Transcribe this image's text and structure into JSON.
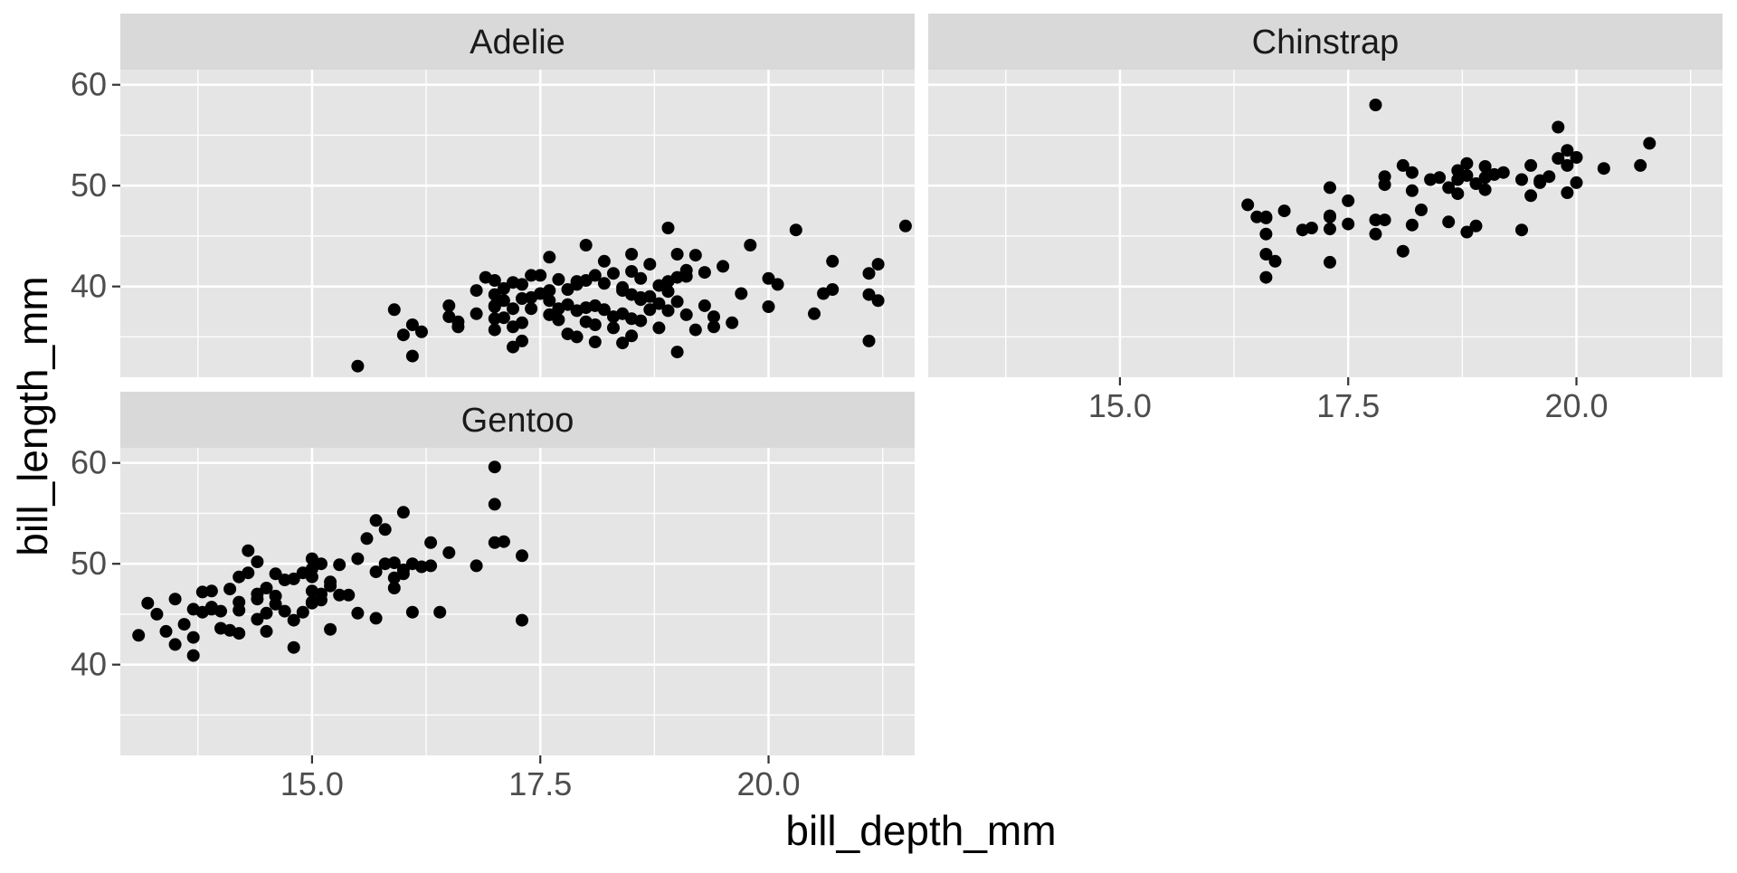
{
  "chart_data": {
    "type": "scatter",
    "xlabel": "bill_depth_mm",
    "ylabel": "bill_length_mm",
    "xlim": [
      12.9,
      21.6
    ],
    "ylim": [
      31.0,
      61.5
    ],
    "x_ticks": [
      15.0,
      17.5,
      20.0
    ],
    "x_tick_labels": [
      "15.0",
      "17.5",
      "20.0"
    ],
    "y_ticks": [
      40,
      50,
      60
    ],
    "y_tick_labels": [
      "40",
      "50",
      "60"
    ],
    "grid": true,
    "panels": [
      {
        "name": "Adelie",
        "x": [
          15.5,
          16.0,
          15.9,
          16.1,
          16.1,
          16.2,
          16.5,
          16.5,
          16.6,
          16.6,
          16.8,
          16.9,
          17.0,
          17.0,
          17.0,
          17.0,
          17.0,
          17.1,
          17.1,
          17.1,
          17.2,
          17.2,
          17.2,
          17.3,
          17.3,
          17.3,
          17.3,
          17.4,
          17.4,
          17.5,
          17.5,
          17.6,
          17.6,
          17.6,
          17.7,
          17.7,
          17.8,
          17.8,
          17.8,
          17.9,
          17.9,
          17.9,
          18.0,
          18.0,
          18.0,
          18.0,
          18.1,
          18.1,
          18.1,
          18.1,
          18.2,
          18.2,
          18.3,
          18.3,
          18.4,
          18.4,
          18.4,
          18.5,
          18.5,
          18.5,
          18.5,
          18.6,
          18.6,
          18.6,
          18.7,
          18.7,
          18.7,
          18.8,
          18.8,
          18.8,
          18.9,
          18.9,
          18.9,
          19.0,
          19.0,
          19.0,
          19.0,
          19.1,
          19.1,
          19.2,
          19.2,
          19.3,
          19.3,
          19.4,
          19.5,
          19.6,
          19.7,
          19.8,
          20.0,
          20.0,
          20.1,
          20.3,
          20.5,
          20.6,
          20.7,
          20.7,
          21.1,
          21.1,
          21.1,
          21.2,
          21.2,
          21.5,
          17.2,
          17.0,
          16.8,
          18.2,
          18.5,
          18.3,
          17.6,
          17.9,
          18.9,
          19.4,
          17.4,
          18.6,
          17.7,
          18.4,
          19.1
        ],
        "y": [
          32.1,
          35.2,
          37.7,
          33.1,
          36.2,
          35.5,
          38.1,
          37.0,
          36.0,
          36.5,
          37.3,
          40.9,
          35.7,
          36.8,
          38.1,
          39.2,
          40.6,
          39.8,
          38.6,
          36.9,
          40.4,
          37.8,
          34.0,
          40.2,
          38.8,
          36.4,
          34.6,
          38.9,
          41.1,
          39.3,
          41.1,
          42.9,
          38.6,
          39.6,
          37.8,
          36.7,
          39.7,
          38.2,
          35.3,
          40.2,
          37.6,
          35.0,
          40.6,
          44.1,
          37.9,
          36.5,
          34.5,
          41.1,
          36.2,
          38.1,
          42.5,
          40.3,
          37.0,
          41.3,
          39.6,
          34.4,
          37.3,
          43.2,
          41.5,
          39.2,
          35.1,
          38.7,
          40.8,
          36.6,
          42.2,
          39.0,
          37.7,
          40.1,
          38.3,
          35.9,
          45.8,
          40.5,
          37.6,
          43.2,
          40.9,
          38.5,
          33.5,
          41.6,
          37.2,
          43.1,
          35.7,
          41.4,
          38.1,
          37.0,
          42.0,
          36.4,
          39.3,
          44.1,
          40.8,
          38.0,
          40.2,
          45.6,
          37.3,
          39.3,
          42.5,
          39.7,
          41.3,
          39.2,
          34.6,
          42.2,
          38.6,
          46.0,
          36.0,
          38.0,
          39.6,
          37.7,
          36.8,
          35.9,
          37.2,
          40.5,
          39.5,
          36.0,
          37.8,
          38.9,
          40.7,
          39.9,
          41.0
        ]
      },
      {
        "name": "Chinstrap",
        "x": [
          16.4,
          16.5,
          16.6,
          16.6,
          16.6,
          16.6,
          16.7,
          16.8,
          17.0,
          17.1,
          17.3,
          17.3,
          17.3,
          17.3,
          17.5,
          17.5,
          17.8,
          17.8,
          17.8,
          17.9,
          17.9,
          17.9,
          18.1,
          18.1,
          18.2,
          18.2,
          18.2,
          18.3,
          18.4,
          18.5,
          18.6,
          18.6,
          18.7,
          18.7,
          18.8,
          18.8,
          18.8,
          18.9,
          18.9,
          19.0,
          19.0,
          19.1,
          19.2,
          19.4,
          19.4,
          19.5,
          19.5,
          19.6,
          19.6,
          19.7,
          19.8,
          19.8,
          19.9,
          19.9,
          19.9,
          20.0,
          20.0,
          20.3,
          20.7,
          20.8,
          16.6,
          17.3,
          18.7,
          19.0
        ],
        "y": [
          48.1,
          46.9,
          46.9,
          45.2,
          43.2,
          40.9,
          42.5,
          47.5,
          45.6,
          45.8,
          49.8,
          46.9,
          45.7,
          42.4,
          48.5,
          46.2,
          58.0,
          46.6,
          45.2,
          50.9,
          50.1,
          46.6,
          52.0,
          43.5,
          51.3,
          49.5,
          46.1,
          47.6,
          50.6,
          50.8,
          46.4,
          49.8,
          51.5,
          50.6,
          52.2,
          51.0,
          45.4,
          50.2,
          46.0,
          51.9,
          49.6,
          51.1,
          51.3,
          50.6,
          45.6,
          52.0,
          49.0,
          50.3,
          50.5,
          50.9,
          52.7,
          55.8,
          53.5,
          49.3,
          52.0,
          52.8,
          50.3,
          51.7,
          52.0,
          54.2,
          46.8,
          47.0,
          49.2,
          50.8
        ]
      },
      {
        "name": "Gentoo",
        "x": [
          13.1,
          13.2,
          13.3,
          13.4,
          13.5,
          13.5,
          13.6,
          13.7,
          13.7,
          13.7,
          13.8,
          13.8,
          13.9,
          13.9,
          14.0,
          14.0,
          14.1,
          14.1,
          14.2,
          14.2,
          14.2,
          14.3,
          14.3,
          14.4,
          14.4,
          14.4,
          14.5,
          14.5,
          14.5,
          14.6,
          14.6,
          14.7,
          14.7,
          14.8,
          14.8,
          14.9,
          14.9,
          15.0,
          15.0,
          15.0,
          15.0,
          15.0,
          15.1,
          15.1,
          15.2,
          15.2,
          15.3,
          15.3,
          15.4,
          15.5,
          15.5,
          15.6,
          15.7,
          15.7,
          15.7,
          15.8,
          15.8,
          15.9,
          15.9,
          16.0,
          16.0,
          16.1,
          16.1,
          16.2,
          16.3,
          16.3,
          16.4,
          16.5,
          16.8,
          17.0,
          17.0,
          17.0,
          17.1,
          17.3,
          17.3,
          14.2,
          14.6,
          15.0,
          15.2,
          15.9,
          16.0,
          14.4,
          14.8,
          13.9,
          15.1
        ],
        "y": [
          42.9,
          46.1,
          45.0,
          43.3,
          42.0,
          46.5,
          44.0,
          45.5,
          42.7,
          40.9,
          47.2,
          45.2,
          47.3,
          45.7,
          43.6,
          45.3,
          47.5,
          43.4,
          48.7,
          46.2,
          43.1,
          51.3,
          49.1,
          46.5,
          44.5,
          50.2,
          47.6,
          45.1,
          43.3,
          49.0,
          46.0,
          48.4,
          45.3,
          44.4,
          41.7,
          49.1,
          45.2,
          50.5,
          48.7,
          47.3,
          46.1,
          49.5,
          50.0,
          46.4,
          43.5,
          47.8,
          49.9,
          46.9,
          46.9,
          45.1,
          50.5,
          52.5,
          54.3,
          49.2,
          44.6,
          53.4,
          50.0,
          50.1,
          47.6,
          49.0,
          55.1,
          50.0,
          45.2,
          49.7,
          52.1,
          49.8,
          45.2,
          51.1,
          49.8,
          59.6,
          55.9,
          52.1,
          52.2,
          50.8,
          44.4,
          45.4,
          46.8,
          46.2,
          48.2,
          48.6,
          49.4,
          47.0,
          48.5,
          45.5,
          47.0
        ]
      }
    ]
  }
}
